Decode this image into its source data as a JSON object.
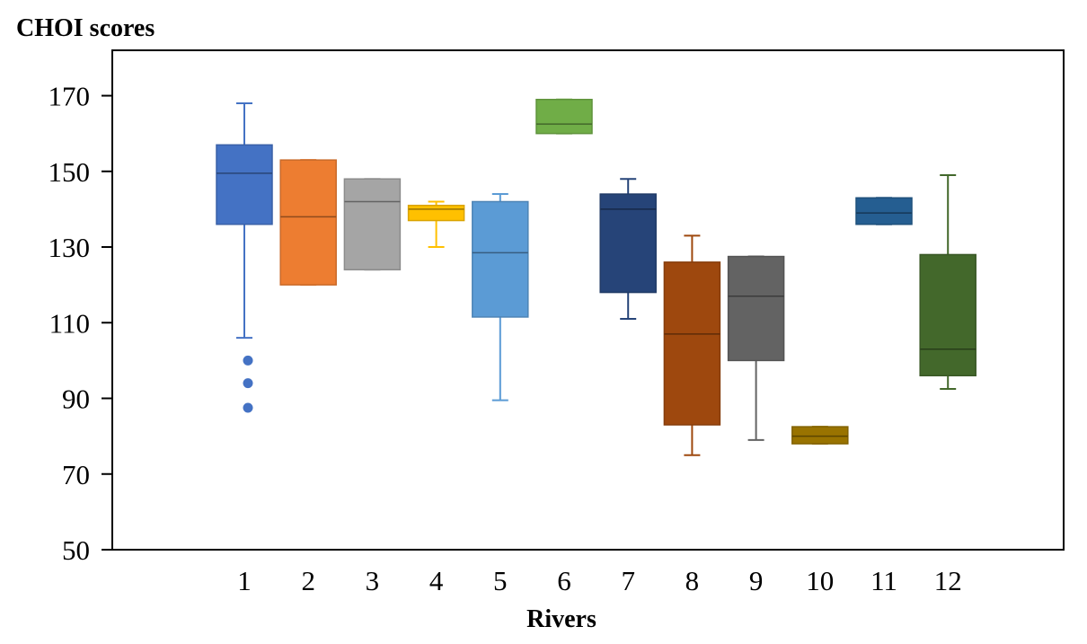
{
  "chart_data": {
    "type": "box",
    "title": "",
    "ylabel": "CHOI scores",
    "xlabel": "Rivers",
    "ylim": [
      50,
      182
    ],
    "yticks": [
      50,
      70,
      90,
      110,
      130,
      150,
      170
    ],
    "categories": [
      "1",
      "2",
      "3",
      "4",
      "5",
      "6",
      "7",
      "8",
      "9",
      "10",
      "11",
      "12"
    ],
    "boxes": [
      {
        "name": "1",
        "color": "#4472C4",
        "whisker_low": 106,
        "q1": 136,
        "median": 149.5,
        "q3": 157,
        "whisker_high": 168,
        "outliers": [
          100,
          94,
          87.5
        ]
      },
      {
        "name": "2",
        "color": "#ED7D31",
        "whisker_low": 120,
        "q1": 120,
        "median": 138,
        "q3": 153,
        "whisker_high": 153,
        "outliers": []
      },
      {
        "name": "3",
        "color": "#A5A5A5",
        "whisker_low": 124,
        "q1": 124,
        "median": 142,
        "q3": 148,
        "whisker_high": 148,
        "outliers": []
      },
      {
        "name": "4",
        "color": "#FFC000",
        "whisker_low": 130,
        "q1": 137,
        "median": 140,
        "q3": 141,
        "whisker_high": 142,
        "outliers": []
      },
      {
        "name": "5",
        "color": "#5B9BD5",
        "whisker_low": 89.5,
        "q1": 111.5,
        "median": 128.5,
        "q3": 142,
        "whisker_high": 144,
        "outliers": []
      },
      {
        "name": "6",
        "color": "#70AD47",
        "whisker_low": 160,
        "q1": 160,
        "median": 162.5,
        "q3": 169,
        "whisker_high": 169,
        "outliers": []
      },
      {
        "name": "7",
        "color": "#264478",
        "whisker_low": 111,
        "q1": 118,
        "median": 140,
        "q3": 144,
        "whisker_high": 148,
        "outliers": []
      },
      {
        "name": "8",
        "color": "#9E480E",
        "whisker_low": 75,
        "q1": 83,
        "median": 107,
        "q3": 126,
        "whisker_high": 133,
        "outliers": []
      },
      {
        "name": "9",
        "color": "#636363",
        "whisker_low": 79,
        "q1": 100,
        "median": 117,
        "q3": 127.5,
        "whisker_high": 127.5,
        "outliers": []
      },
      {
        "name": "10",
        "color": "#997300",
        "whisker_low": 78,
        "q1": 78,
        "median": 80,
        "q3": 82.5,
        "whisker_high": 82.5,
        "outliers": []
      },
      {
        "name": "11",
        "color": "#255E91",
        "whisker_low": 136,
        "q1": 136,
        "median": 139,
        "q3": 143,
        "whisker_high": 143,
        "outliers": []
      },
      {
        "name": "12",
        "color": "#43682B",
        "whisker_low": 92.5,
        "q1": 96,
        "median": 103,
        "q3": 128,
        "whisker_high": 149,
        "outliers": []
      }
    ]
  }
}
